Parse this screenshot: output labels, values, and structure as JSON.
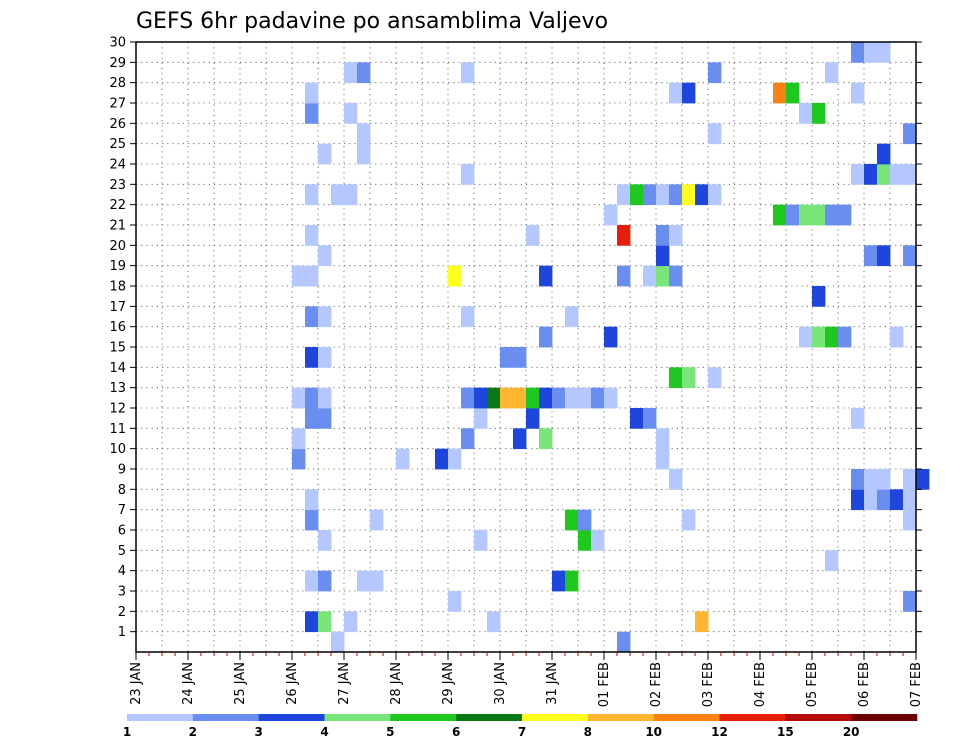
{
  "chart_data": {
    "type": "heatmap",
    "title": "GEFS 6hr padavine po ansamblima Valjevo",
    "x_tick_labels": [
      "23 JAN",
      "24 JAN",
      "25 JAN",
      "26 JAN",
      "27 JAN",
      "28 JAN",
      "29 JAN",
      "30 JAN",
      "31 JAN",
      "01 FEB",
      "02 FEB",
      "03 FEB",
      "04 FEB",
      "05 FEB",
      "06 FEB",
      "07 FEB"
    ],
    "y_tick_labels": [
      "1",
      "2",
      "3",
      "4",
      "5",
      "6",
      "7",
      "8",
      "9",
      "10",
      "11",
      "12",
      "13",
      "14",
      "15",
      "16",
      "17",
      "18",
      "19",
      "20",
      "21",
      "22",
      "23",
      "24",
      "25",
      "26",
      "27",
      "28",
      "29",
      "30"
    ],
    "xlim_days": [
      0,
      15
    ],
    "ylim": [
      0,
      30
    ],
    "grid": true,
    "colorbar": {
      "tick_labels": [
        "1",
        "2",
        "3",
        "4",
        "5",
        "6",
        "7",
        "8",
        "10",
        "12",
        "15",
        "20"
      ],
      "colors": [
        "#b4c8ff",
        "#6a8ef0",
        "#1e46dc",
        "#78e678",
        "#1ec81e",
        "#0a7814",
        "#ffff1e",
        "#ffb432",
        "#fa8214",
        "#e61e0a",
        "#b40a0a",
        "#6e0000"
      ]
    },
    "cells": [
      [
        3.25,
        1,
        3
      ],
      [
        3.5,
        1,
        4
      ],
      [
        4.0,
        1,
        1
      ],
      [
        6.75,
        1,
        1
      ],
      [
        10.75,
        1,
        8
      ],
      [
        3.75,
        0,
        1
      ],
      [
        9.25,
        0,
        2
      ],
      [
        14.75,
        2,
        2
      ],
      [
        6.0,
        2,
        1
      ],
      [
        3.25,
        3,
        1
      ],
      [
        3.5,
        3,
        2
      ],
      [
        4.25,
        3,
        1
      ],
      [
        4.5,
        3,
        1
      ],
      [
        8.0,
        3,
        3
      ],
      [
        8.25,
        3,
        5
      ],
      [
        13.25,
        4,
        1
      ],
      [
        3.5,
        5,
        1
      ],
      [
        6.5,
        5,
        1
      ],
      [
        8.5,
        5,
        5
      ],
      [
        8.75,
        5,
        1
      ],
      [
        3.25,
        6,
        2
      ],
      [
        4.5,
        6,
        1
      ],
      [
        8.25,
        6,
        5
      ],
      [
        8.5,
        6,
        2
      ],
      [
        10.5,
        6,
        1
      ],
      [
        14.75,
        6,
        1
      ],
      [
        3.25,
        7,
        1
      ],
      [
        13.75,
        7,
        3
      ],
      [
        14.0,
        7,
        1
      ],
      [
        14.25,
        7,
        2
      ],
      [
        14.5,
        7,
        3
      ],
      [
        14.75,
        7,
        1
      ],
      [
        10.25,
        8,
        1
      ],
      [
        13.75,
        8,
        2
      ],
      [
        14.0,
        8,
        1
      ],
      [
        14.25,
        8,
        1
      ],
      [
        14.75,
        8,
        1
      ],
      [
        15.0,
        8,
        3
      ],
      [
        3.0,
        9,
        2
      ],
      [
        5.0,
        9,
        1
      ],
      [
        5.75,
        9,
        3
      ],
      [
        6.0,
        9,
        1
      ],
      [
        10.0,
        9,
        1
      ],
      [
        3.0,
        10,
        1
      ],
      [
        6.25,
        10,
        2
      ],
      [
        7.25,
        10,
        3
      ],
      [
        7.75,
        10,
        4
      ],
      [
        10.0,
        10,
        1
      ],
      [
        3.25,
        11,
        2
      ],
      [
        3.5,
        11,
        2
      ],
      [
        6.5,
        11,
        1
      ],
      [
        7.5,
        11,
        3
      ],
      [
        9.5,
        11,
        3
      ],
      [
        9.75,
        11,
        2
      ],
      [
        13.75,
        11,
        1
      ],
      [
        3.0,
        12,
        1
      ],
      [
        3.25,
        12,
        2
      ],
      [
        3.5,
        12,
        1
      ],
      [
        6.25,
        12,
        2
      ],
      [
        6.5,
        12,
        3
      ],
      [
        6.75,
        12,
        6
      ],
      [
        7.0,
        12,
        8
      ],
      [
        7.25,
        12,
        8
      ],
      [
        7.5,
        12,
        5
      ],
      [
        7.75,
        12,
        3
      ],
      [
        8.0,
        12,
        2
      ],
      [
        8.25,
        12,
        1
      ],
      [
        8.5,
        12,
        1
      ],
      [
        8.75,
        12,
        2
      ],
      [
        9.0,
        12,
        1
      ],
      [
        10.25,
        13,
        5
      ],
      [
        10.5,
        13,
        4
      ],
      [
        11.0,
        13,
        1
      ],
      [
        3.25,
        14,
        3
      ],
      [
        3.5,
        14,
        1
      ],
      [
        7.0,
        14,
        2
      ],
      [
        7.25,
        14,
        2
      ],
      [
        7.75,
        15,
        2
      ],
      [
        9.0,
        15,
        3
      ],
      [
        12.75,
        15,
        1
      ],
      [
        13.0,
        15,
        4
      ],
      [
        13.25,
        15,
        5
      ],
      [
        13.5,
        15,
        2
      ],
      [
        14.5,
        15,
        1
      ],
      [
        3.25,
        16,
        2
      ],
      [
        3.5,
        16,
        1
      ],
      [
        6.25,
        16,
        1
      ],
      [
        8.25,
        16,
        1
      ],
      [
        13.0,
        17,
        3
      ],
      [
        3.0,
        18,
        1
      ],
      [
        3.25,
        18,
        1
      ],
      [
        6.0,
        18,
        7
      ],
      [
        7.75,
        18,
        3
      ],
      [
        9.25,
        18,
        2
      ],
      [
        9.75,
        18,
        1
      ],
      [
        10.0,
        18,
        4
      ],
      [
        10.25,
        18,
        2
      ],
      [
        3.5,
        19,
        1
      ],
      [
        10.0,
        19,
        3
      ],
      [
        14.0,
        19,
        2
      ],
      [
        14.25,
        19,
        3
      ],
      [
        14.75,
        19,
        2
      ],
      [
        3.25,
        20,
        1
      ],
      [
        7.5,
        20,
        1
      ],
      [
        9.25,
        20,
        10
      ],
      [
        10.0,
        20,
        2
      ],
      [
        10.25,
        20,
        1
      ],
      [
        9.0,
        21,
        1
      ],
      [
        12.25,
        21,
        5
      ],
      [
        12.5,
        21,
        2
      ],
      [
        12.75,
        21,
        4
      ],
      [
        13.0,
        21,
        4
      ],
      [
        13.25,
        21,
        2
      ],
      [
        13.5,
        21,
        2
      ],
      [
        3.25,
        22,
        1
      ],
      [
        3.75,
        22,
        1
      ],
      [
        4.0,
        22,
        1
      ],
      [
        9.25,
        22,
        1
      ],
      [
        9.5,
        22,
        5
      ],
      [
        9.75,
        22,
        2
      ],
      [
        10.0,
        22,
        1
      ],
      [
        10.25,
        22,
        2
      ],
      [
        10.5,
        22,
        7
      ],
      [
        10.75,
        22,
        3
      ],
      [
        11.0,
        22,
        1
      ],
      [
        6.25,
        23,
        1
      ],
      [
        13.75,
        23,
        1
      ],
      [
        14.0,
        23,
        3
      ],
      [
        14.25,
        23,
        4
      ],
      [
        14.5,
        23,
        1
      ],
      [
        14.75,
        23,
        1
      ],
      [
        3.5,
        24,
        1
      ],
      [
        4.25,
        24,
        1
      ],
      [
        14.25,
        24,
        3
      ],
      [
        4.25,
        25,
        1
      ],
      [
        11.0,
        25,
        1
      ],
      [
        14.75,
        25,
        2
      ],
      [
        3.25,
        26,
        2
      ],
      [
        4.0,
        26,
        1
      ],
      [
        12.75,
        26,
        1
      ],
      [
        13.0,
        26,
        5
      ],
      [
        3.25,
        27,
        1
      ],
      [
        10.25,
        27,
        1
      ],
      [
        10.5,
        27,
        3
      ],
      [
        12.25,
        27,
        9
      ],
      [
        12.5,
        27,
        5
      ],
      [
        13.75,
        27,
        1
      ],
      [
        4.0,
        28,
        1
      ],
      [
        4.25,
        28,
        2
      ],
      [
        6.25,
        28,
        1
      ],
      [
        11.0,
        28,
        2
      ],
      [
        13.25,
        28,
        1
      ],
      [
        13.75,
        29,
        2
      ],
      [
        14.0,
        29,
        1
      ],
      [
        14.25,
        29,
        1
      ]
    ]
  }
}
